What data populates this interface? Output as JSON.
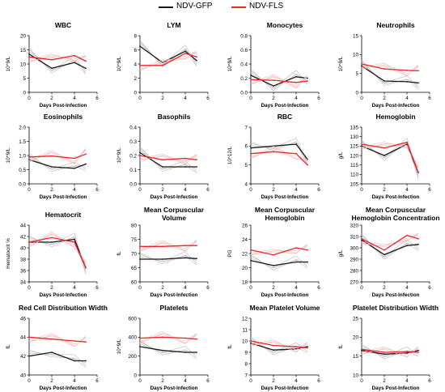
{
  "legend": [
    {
      "name": "NDV-GFP",
      "color": "#1a1a1a"
    },
    {
      "name": "NDV-FLS",
      "color": "#e8262b"
    }
  ],
  "colors": {
    "gfp": "#1a1a1a",
    "fls": "#e8262b",
    "gfp_light": "#b8b8b8",
    "fls_light": "#f5b5b6"
  },
  "chart_data": [
    {
      "type": "line",
      "title": "WBC",
      "ylabel": "10^9/L",
      "xlabel": "Days Post-Infection",
      "xlim": [
        0,
        6
      ],
      "ylim": [
        0,
        20
      ],
      "yticks": [
        0,
        5,
        10,
        15,
        20
      ],
      "xticks": [
        0,
        2,
        4,
        6
      ],
      "x": [
        0,
        2,
        4,
        5
      ],
      "series": [
        {
          "name": "NDV-GFP",
          "values": [
            13.5,
            8.5,
            10.5,
            8.5
          ]
        },
        {
          "name": "NDV-FLS",
          "values": [
            12.5,
            11.5,
            13,
            11
          ]
        }
      ]
    },
    {
      "type": "line",
      "title": "LYM",
      "ylabel": "10^9/L",
      "xlabel": "",
      "xlim": [
        0,
        6
      ],
      "ylim": [
        0,
        8
      ],
      "yticks": [
        0,
        2,
        4,
        6,
        8
      ],
      "xticks": [
        0,
        2,
        4,
        6
      ],
      "x": [
        0,
        2,
        4,
        5
      ],
      "series": [
        {
          "name": "NDV-GFP",
          "values": [
            6.5,
            4.2,
            5.8,
            4.5
          ]
        },
        {
          "name": "NDV-FLS",
          "values": [
            3.8,
            3.8,
            5.5,
            5.0
          ]
        }
      ]
    },
    {
      "type": "line",
      "title": "Monocytes",
      "ylabel": "10^9/L",
      "xlabel": "Days Post-Infection",
      "xlim": [
        0,
        6
      ],
      "ylim": [
        0,
        0.8
      ],
      "yticks": [
        0,
        0.2,
        0.4,
        0.6,
        0.8
      ],
      "xticks": [
        0,
        2,
        4,
        6
      ],
      "x": [
        0,
        2,
        4,
        5
      ],
      "series": [
        {
          "name": "NDV-GFP",
          "values": [
            0.24,
            0.09,
            0.22,
            0.2
          ]
        },
        {
          "name": "NDV-FLS",
          "values": [
            0.18,
            0.17,
            0.14,
            0.16
          ]
        }
      ]
    },
    {
      "type": "line",
      "title": "Neutrophils",
      "ylabel": "10^9/L",
      "xlabel": "Days Post-Infection",
      "xlim": [
        0,
        6
      ],
      "ylim": [
        0,
        15
      ],
      "yticks": [
        0,
        5,
        10,
        15
      ],
      "xticks": [
        0,
        2,
        4,
        6
      ],
      "x": [
        0,
        2,
        4,
        5
      ],
      "series": [
        {
          "name": "NDV-GFP",
          "values": [
            7,
            3,
            2.8,
            2.5
          ]
        },
        {
          "name": "NDV-FLS",
          "values": [
            7.5,
            6.2,
            5.8,
            5.7
          ]
        }
      ]
    },
    {
      "type": "line",
      "title": "Eosinophils",
      "ylabel": "10^9/L",
      "xlabel": "Days Post-Infection",
      "xlim": [
        0,
        6
      ],
      "ylim": [
        0,
        2.0
      ],
      "yticks": [
        0,
        0.5,
        1.0,
        1.5,
        2.0
      ],
      "xticks": [
        0,
        2,
        4,
        6
      ],
      "x": [
        0,
        2,
        4,
        5
      ],
      "series": [
        {
          "name": "NDV-GFP",
          "values": [
            0.85,
            0.6,
            0.55,
            0.7
          ]
        },
        {
          "name": "NDV-FLS",
          "values": [
            0.95,
            0.98,
            0.9,
            1.05
          ]
        }
      ]
    },
    {
      "type": "line",
      "title": "Basophils",
      "ylabel": "10^9/L",
      "xlabel": "Days Post-Infection",
      "xlim": [
        0,
        6
      ],
      "ylim": [
        0,
        0.4
      ],
      "yticks": [
        0,
        0.1,
        0.2,
        0.3,
        0.4
      ],
      "xticks": [
        0,
        2,
        4,
        6
      ],
      "x": [
        0,
        2,
        4,
        5
      ],
      "series": [
        {
          "name": "NDV-GFP",
          "values": [
            0.22,
            0.12,
            0.12,
            0.12
          ]
        },
        {
          "name": "NDV-FLS",
          "values": [
            0.2,
            0.17,
            0.18,
            0.17
          ]
        }
      ]
    },
    {
      "type": "line",
      "title": "RBC",
      "ylabel": "10^12/L",
      "xlabel": "Days Post-Infection",
      "xlim": [
        0,
        6
      ],
      "ylim": [
        4.0,
        7.0
      ],
      "yticks": [
        4.0,
        5.0,
        6.0,
        7.0
      ],
      "xticks": [
        0,
        2,
        4,
        6
      ],
      "x": [
        0,
        2,
        4,
        5
      ],
      "series": [
        {
          "name": "NDV-GFP",
          "values": [
            5.9,
            6.0,
            6.1,
            5.3
          ]
        },
        {
          "name": "NDV-FLS",
          "values": [
            5.6,
            5.7,
            5.6,
            5.0
          ]
        }
      ]
    },
    {
      "type": "line",
      "title": "Hemoglobin",
      "ylabel": "g/L",
      "xlabel": "Days Post-Infection",
      "xlim": [
        0,
        6
      ],
      "ylim": [
        105,
        135
      ],
      "yticks": [
        105,
        110,
        115,
        120,
        125,
        130,
        135
      ],
      "xticks": [
        0,
        2,
        4,
        6
      ],
      "x": [
        0,
        2,
        4,
        5
      ],
      "series": [
        {
          "name": "NDV-GFP",
          "values": [
            125,
            120,
            126,
            111
          ]
        },
        {
          "name": "NDV-FLS",
          "values": [
            126,
            124,
            127,
            111
          ]
        }
      ]
    },
    {
      "type": "line",
      "title": "Hematocrit",
      "ylabel": "Hematocrit %",
      "xlabel": "Days Post-Infection",
      "xlim": [
        0,
        6
      ],
      "ylim": [
        34,
        44
      ],
      "yticks": [
        34,
        36,
        38,
        40,
        42,
        44
      ],
      "xticks": [
        0,
        2,
        4,
        6
      ],
      "x": [
        0,
        2,
        4,
        5
      ],
      "series": [
        {
          "name": "NDV-GFP",
          "values": [
            41,
            41,
            41.5,
            36.5
          ]
        },
        {
          "name": "NDV-FLS",
          "values": [
            41,
            41.8,
            41,
            36.5
          ]
        }
      ]
    },
    {
      "type": "line",
      "title": "Mean Corpuscular\nVolume",
      "ylabel": "fL",
      "xlabel": "Days Post-Infection",
      "xlim": [
        0,
        6
      ],
      "ylim": [
        60,
        80
      ],
      "yticks": [
        60,
        65,
        70,
        75,
        80
      ],
      "xticks": [
        0,
        2,
        4,
        6
      ],
      "x": [
        0,
        2,
        4,
        5
      ],
      "series": [
        {
          "name": "NDV-GFP",
          "values": [
            68,
            68,
            68.5,
            68.2
          ]
        },
        {
          "name": "NDV-FLS",
          "values": [
            72.5,
            72.5,
            72.8,
            72.8
          ]
        }
      ]
    },
    {
      "type": "line",
      "title": "Mean Corpuscular\nHemoglobin",
      "ylabel": "PG",
      "xlabel": "Days Post-Infection",
      "xlim": [
        0,
        6
      ],
      "ylim": [
        18,
        26
      ],
      "yticks": [
        18,
        20,
        22,
        24,
        26
      ],
      "xticks": [
        0,
        2,
        4,
        6
      ],
      "x": [
        0,
        2,
        4,
        5
      ],
      "series": [
        {
          "name": "NDV-GFP",
          "values": [
            21,
            20.3,
            20.8,
            20.8
          ]
        },
        {
          "name": "NDV-FLS",
          "values": [
            22.5,
            21.8,
            22.8,
            22.5
          ]
        }
      ]
    },
    {
      "type": "line",
      "title": "Mean Corpuscular\nHemoglobin Concentration",
      "ylabel": "g/L",
      "xlabel": "Days Post-Infection",
      "xlim": [
        0,
        6
      ],
      "ylim": [
        270,
        320
      ],
      "yticks": [
        270,
        280,
        290,
        300,
        310,
        320
      ],
      "xticks": [
        0,
        2,
        4,
        6
      ],
      "x": [
        0,
        2,
        4,
        5
      ],
      "series": [
        {
          "name": "NDV-GFP",
          "values": [
            307,
            294,
            302,
            303
          ]
        },
        {
          "name": "NDV-FLS",
          "values": [
            308,
            298,
            311,
            308
          ]
        }
      ]
    },
    {
      "type": "line",
      "title": "Red Cell Distribution Width",
      "ylabel": "fL",
      "xlabel": "Days Post-Infection",
      "xlim": [
        0,
        6
      ],
      "ylim": [
        40,
        46
      ],
      "yticks": [
        40,
        42,
        44,
        46
      ],
      "xticks": [
        0,
        2,
        4,
        6
      ],
      "x": [
        0,
        2,
        4,
        5
      ],
      "series": [
        {
          "name": "NDV-GFP",
          "values": [
            42,
            42.4,
            41.5,
            41.5
          ]
        },
        {
          "name": "NDV-FLS",
          "values": [
            44,
            43.8,
            43.6,
            43.5
          ]
        }
      ]
    },
    {
      "type": "line",
      "title": "Platelets",
      "ylabel": "10^9/L",
      "xlabel": "Days Post-Infection",
      "xlim": [
        0,
        6
      ],
      "ylim": [
        0,
        600
      ],
      "yticks": [
        0,
        200,
        400,
        600
      ],
      "xticks": [
        0,
        2,
        4,
        6
      ],
      "x": [
        0,
        2,
        4,
        5
      ],
      "series": [
        {
          "name": "NDV-GFP",
          "values": [
            300,
            260,
            240,
            240
          ]
        },
        {
          "name": "NDV-FLS",
          "values": [
            390,
            400,
            390,
            380
          ]
        }
      ]
    },
    {
      "type": "line",
      "title": "Mean Platelet Volume",
      "ylabel": "fL",
      "xlabel": "Days Post-Infection",
      "xlim": [
        0,
        6
      ],
      "ylim": [
        7,
        12
      ],
      "yticks": [
        7,
        8,
        9,
        10,
        11,
        12
      ],
      "xticks": [
        0,
        2,
        4,
        6
      ],
      "x": [
        0,
        2,
        4,
        5
      ],
      "series": [
        {
          "name": "NDV-GFP",
          "values": [
            9.8,
            9.2,
            9.3,
            9.5
          ]
        },
        {
          "name": "NDV-FLS",
          "values": [
            10,
            9.6,
            9.5,
            9.4
          ]
        }
      ]
    },
    {
      "type": "line",
      "title": "Platelet Distribution Width",
      "ylabel": "fL",
      "xlabel": "Days Post-Infection",
      "xlim": [
        0,
        6
      ],
      "ylim": [
        10,
        25
      ],
      "yticks": [
        10,
        15,
        20,
        25
      ],
      "xticks": [
        0,
        2,
        4,
        6
      ],
      "x": [
        0,
        2,
        4,
        5
      ],
      "series": [
        {
          "name": "NDV-GFP",
          "values": [
            16.5,
            15.5,
            15.8,
            16.5
          ]
        },
        {
          "name": "NDV-FLS",
          "values": [
            16.8,
            16,
            16.2,
            16
          ]
        }
      ]
    }
  ]
}
